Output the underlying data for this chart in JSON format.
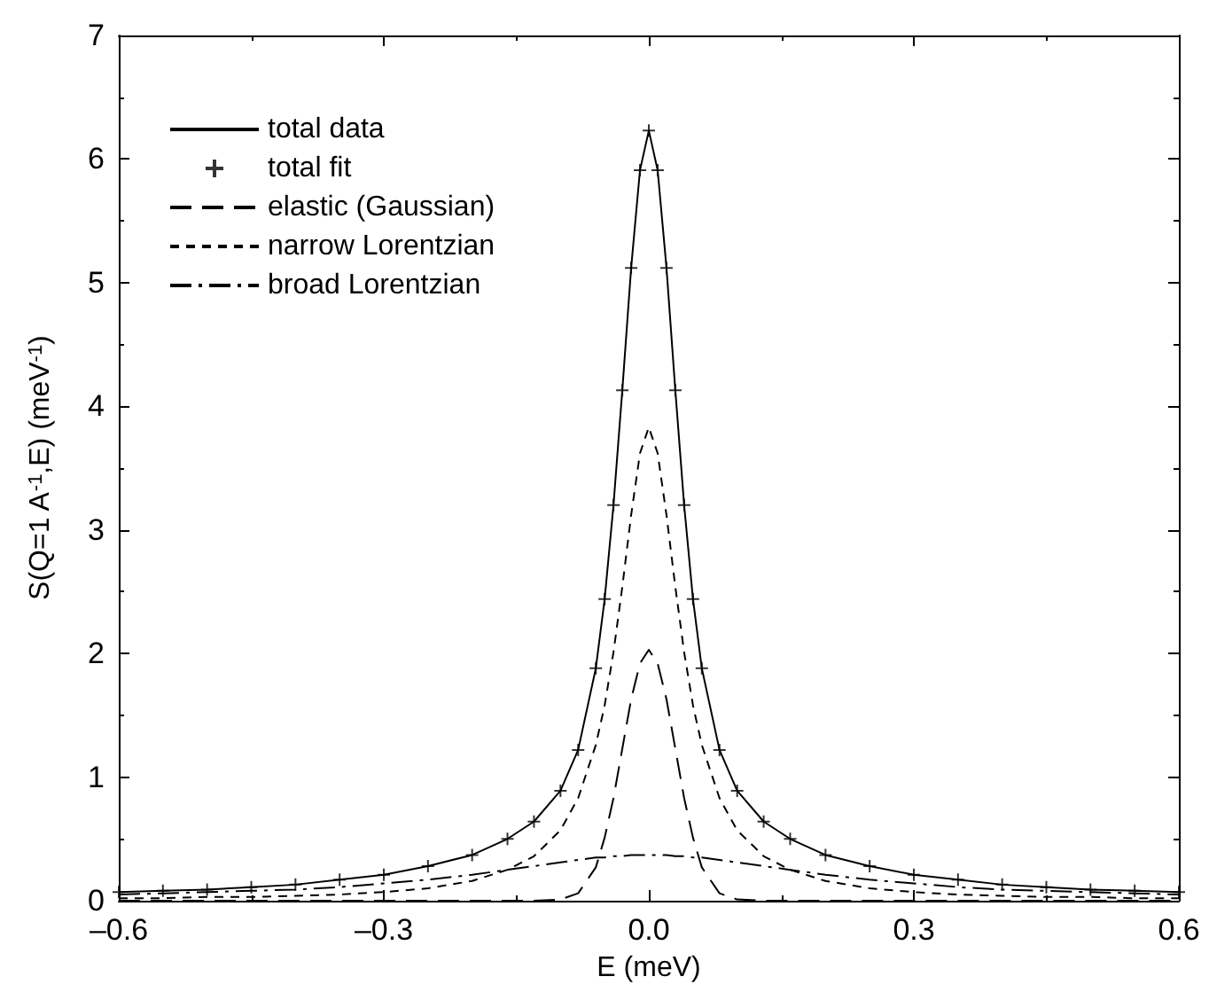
{
  "chart_data": {
    "type": "line",
    "xlabel": "E (meV)",
    "ylabel": "S(Q=1 A$^{-1}$,E) (meV$^{-1}$)",
    "x": [
      -0.6,
      -0.55,
      -0.5,
      -0.45,
      -0.4,
      -0.35,
      -0.3,
      -0.25,
      -0.2,
      -0.16,
      -0.13,
      -0.1,
      -0.08,
      -0.06,
      -0.05,
      -0.04,
      -0.03,
      -0.02,
      -0.01,
      0,
      0.01,
      0.02,
      0.03,
      0.04,
      0.05,
      0.06,
      0.08,
      0.1,
      0.13,
      0.16,
      0.2,
      0.25,
      0.3,
      0.35,
      0.4,
      0.45,
      0.5,
      0.55,
      0.6
    ],
    "series": [
      {
        "name": "total data",
        "color": "#000000",
        "line_style": "solid",
        "values": [
          0.07,
          0.08,
          0.09,
          0.11,
          0.13,
          0.17,
          0.21,
          0.28,
          0.37,
          0.5,
          0.64,
          0.89,
          1.22,
          1.88,
          2.44,
          3.2,
          4.13,
          5.12,
          5.91,
          6.23,
          5.91,
          5.12,
          4.13,
          3.2,
          2.44,
          1.88,
          1.22,
          0.89,
          0.64,
          0.5,
          0.37,
          0.28,
          0.21,
          0.17,
          0.13,
          0.11,
          0.09,
          0.08,
          0.07
        ]
      },
      {
        "name": "total fit",
        "type": "scatter",
        "marker": "cross",
        "color": "#000000",
        "values": [
          0.07,
          0.08,
          0.09,
          0.11,
          0.13,
          0.17,
          0.21,
          0.28,
          0.37,
          0.5,
          0.64,
          0.89,
          1.22,
          1.88,
          2.44,
          3.2,
          4.13,
          5.12,
          5.91,
          6.23,
          5.91,
          5.12,
          4.13,
          3.2,
          2.44,
          1.88,
          1.22,
          0.89,
          0.64,
          0.5,
          0.37,
          0.28,
          0.21,
          0.17,
          0.13,
          0.11,
          0.09,
          0.08,
          0.07
        ]
      },
      {
        "name": "elastic (Gaussian)",
        "color": "#000000",
        "line_style": "dashed",
        "values": [
          0,
          0,
          0,
          0,
          0,
          0,
          0,
          0,
          0,
          0,
          0,
          0.01,
          0.06,
          0.27,
          0.51,
          0.83,
          1.23,
          1.63,
          1.92,
          2.03,
          1.92,
          1.63,
          1.23,
          0.83,
          0.51,
          0.27,
          0.06,
          0.01,
          0,
          0,
          0,
          0,
          0,
          0,
          0,
          0,
          0,
          0,
          0
        ]
      },
      {
        "name": "narrow Lorentzian",
        "color": "#000000",
        "line_style": "dashed",
        "values": [
          0.02,
          0.02,
          0.03,
          0.03,
          0.04,
          0.05,
          0.07,
          0.1,
          0.16,
          0.25,
          0.36,
          0.57,
          0.83,
          1.26,
          1.58,
          2.01,
          2.54,
          3.12,
          3.62,
          3.83,
          3.62,
          3.12,
          2.54,
          2.01,
          1.58,
          1.26,
          0.83,
          0.57,
          0.36,
          0.25,
          0.16,
          0.1,
          0.07,
          0.05,
          0.04,
          0.03,
          0.03,
          0.02,
          0.02
        ]
      },
      {
        "name": "broad Lorentzian",
        "color": "#000000",
        "line_style": "dashed",
        "values": [
          0.05,
          0.06,
          0.07,
          0.08,
          0.09,
          0.11,
          0.14,
          0.17,
          0.21,
          0.25,
          0.28,
          0.31,
          0.33,
          0.35,
          0.35,
          0.36,
          0.36,
          0.37,
          0.37,
          0.37,
          0.37,
          0.37,
          0.36,
          0.36,
          0.35,
          0.35,
          0.33,
          0.31,
          0.28,
          0.25,
          0.21,
          0.17,
          0.14,
          0.11,
          0.09,
          0.08,
          0.07,
          0.06,
          0.05
        ]
      }
    ],
    "xlim": [
      -0.6,
      0.6
    ],
    "xticks": [
      {
        "value": -0.6,
        "label": "–0.6"
      },
      {
        "value": -0.3,
        "label": "–0.3"
      },
      {
        "value": 0,
        "label": "0.0"
      },
      0.3,
      0.6
    ],
    "ylim": [
      0,
      7
    ],
    "yticks": [
      0,
      1,
      2,
      3,
      4,
      5,
      6,
      7
    ],
    "grid": false,
    "legend": "top left"
  }
}
